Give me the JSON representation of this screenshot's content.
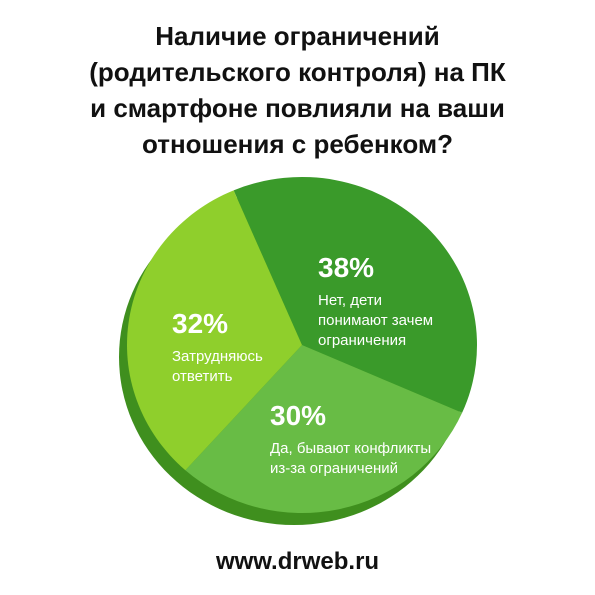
{
  "title_lines": [
    "Наличие ограничений",
    "(родительского контроля) на ПК",
    "и смартфоне повлияли на ваши",
    "отношения с ребенком?"
  ],
  "footer": "www.drweb.ru",
  "colors": {
    "background": "#ffffff",
    "text": "#111111",
    "label": "#ffffff",
    "pie_shadow": "#3f8f1e"
  },
  "chart_data": {
    "type": "pie",
    "title": "Наличие ограничений (родительского контроля) на ПК и смартфоне повлияли на ваши отношения с ребенком?",
    "slices": [
      {
        "percent": "38%",
        "value": 38,
        "label": [
          "Нет, дети",
          "понимают зачем",
          "ограничения"
        ],
        "color": "#3a9a2a"
      },
      {
        "percent": "30%",
        "value": 30,
        "label": [
          "Да, бывают конфликты",
          "из-за ограничений"
        ],
        "color": "#68bc45"
      },
      {
        "percent": "32%",
        "value": 32,
        "label": [
          "Затрудняюсь",
          "ответить"
        ],
        "color": "#8fcf2c"
      }
    ]
  }
}
